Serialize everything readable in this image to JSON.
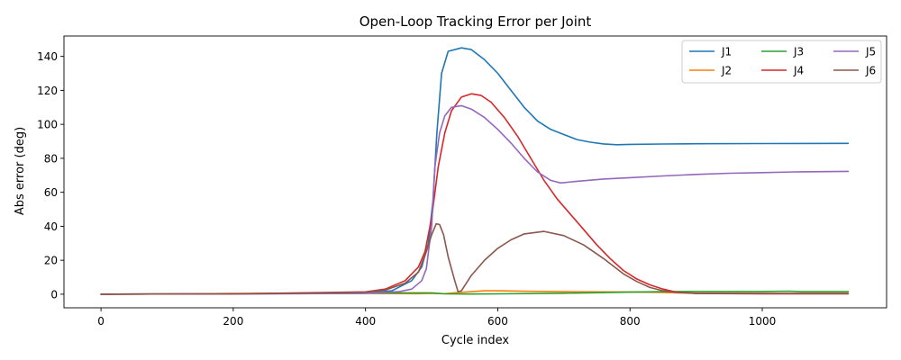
{
  "chart_data": {
    "type": "line",
    "title": "Open-Loop Tracking Error per Joint",
    "xlabel": "Cycle index",
    "ylabel": "Abs error (deg)",
    "xlim": [
      -56,
      1188
    ],
    "ylim": [
      -8,
      152
    ],
    "xticks": [
      0,
      200,
      400,
      600,
      800,
      1000
    ],
    "yticks": [
      0,
      20,
      40,
      60,
      80,
      100,
      120,
      140
    ],
    "grid": false,
    "legend": {
      "position": "top-right",
      "columns": 3
    },
    "series": [
      {
        "name": "J1",
        "color": "#1f77b4",
        "points": [
          [
            0,
            0
          ],
          [
            200,
            0.2
          ],
          [
            400,
            0.6
          ],
          [
            440,
            2
          ],
          [
            470,
            8
          ],
          [
            485,
            16
          ],
          [
            495,
            30
          ],
          [
            502,
            55
          ],
          [
            508,
            95
          ],
          [
            515,
            130
          ],
          [
            525,
            143
          ],
          [
            545,
            145
          ],
          [
            560,
            144
          ],
          [
            580,
            138
          ],
          [
            600,
            130
          ],
          [
            620,
            120
          ],
          [
            640,
            110
          ],
          [
            660,
            102
          ],
          [
            680,
            97
          ],
          [
            700,
            94
          ],
          [
            720,
            91
          ],
          [
            740,
            89.5
          ],
          [
            760,
            88.5
          ],
          [
            780,
            88
          ],
          [
            800,
            88.2
          ],
          [
            850,
            88.4
          ],
          [
            900,
            88.6
          ],
          [
            1000,
            88.7
          ],
          [
            1130,
            88.8
          ]
        ]
      },
      {
        "name": "J2",
        "color": "#ff7f0e",
        "points": [
          [
            0,
            0
          ],
          [
            150,
            0.2
          ],
          [
            200,
            0.5
          ],
          [
            300,
            0.6
          ],
          [
            400,
            0.5
          ],
          [
            480,
            0.3
          ],
          [
            500,
            0.5
          ],
          [
            520,
            0.3
          ],
          [
            540,
            1
          ],
          [
            560,
            1.5
          ],
          [
            580,
            2
          ],
          [
            600,
            2
          ],
          [
            650,
            1.7
          ],
          [
            700,
            1.5
          ],
          [
            800,
            1.3
          ],
          [
            850,
            1
          ],
          [
            900,
            0.5
          ],
          [
            1000,
            0.4
          ],
          [
            1130,
            0.4
          ]
        ]
      },
      {
        "name": "J3",
        "color": "#2ca02c",
        "points": [
          [
            0,
            0
          ],
          [
            200,
            0.2
          ],
          [
            300,
            0.4
          ],
          [
            400,
            0.6
          ],
          [
            450,
            0.8
          ],
          [
            500,
            0.8
          ],
          [
            520,
            0.2
          ],
          [
            560,
            0.1
          ],
          [
            600,
            0.2
          ],
          [
            700,
            0.6
          ],
          [
            800,
            1.2
          ],
          [
            850,
            1.5
          ],
          [
            900,
            1.6
          ],
          [
            1000,
            1.6
          ],
          [
            1040,
            1.8
          ],
          [
            1060,
            1.5
          ],
          [
            1130,
            1.5
          ]
        ]
      },
      {
        "name": "J4",
        "color": "#d62728",
        "points": [
          [
            0,
            0
          ],
          [
            200,
            0.2
          ],
          [
            400,
            1.4
          ],
          [
            430,
            3
          ],
          [
            460,
            8
          ],
          [
            480,
            16
          ],
          [
            490,
            25
          ],
          [
            500,
            45
          ],
          [
            510,
            75
          ],
          [
            520,
            95
          ],
          [
            530,
            108
          ],
          [
            545,
            116
          ],
          [
            560,
            118
          ],
          [
            575,
            117
          ],
          [
            590,
            113
          ],
          [
            610,
            104
          ],
          [
            630,
            93
          ],
          [
            650,
            80
          ],
          [
            670,
            67
          ],
          [
            690,
            56
          ],
          [
            710,
            47
          ],
          [
            730,
            38
          ],
          [
            750,
            29
          ],
          [
            770,
            21
          ],
          [
            790,
            14
          ],
          [
            810,
            9
          ],
          [
            830,
            5.5
          ],
          [
            850,
            3
          ],
          [
            870,
            1.2
          ],
          [
            900,
            0.4
          ],
          [
            1000,
            0.2
          ],
          [
            1130,
            0.2
          ]
        ]
      },
      {
        "name": "J5",
        "color": "#9467bd",
        "points": [
          [
            0,
            0
          ],
          [
            300,
            0.3
          ],
          [
            400,
            0.6
          ],
          [
            450,
            1.5
          ],
          [
            470,
            3
          ],
          [
            485,
            8
          ],
          [
            492,
            15
          ],
          [
            500,
            40
          ],
          [
            505,
            75
          ],
          [
            512,
            95
          ],
          [
            520,
            105
          ],
          [
            530,
            110
          ],
          [
            545,
            111
          ],
          [
            560,
            109
          ],
          [
            580,
            104
          ],
          [
            600,
            97
          ],
          [
            620,
            89
          ],
          [
            640,
            80
          ],
          [
            660,
            72
          ],
          [
            680,
            67
          ],
          [
            695,
            65.5
          ],
          [
            720,
            66.5
          ],
          [
            760,
            67.8
          ],
          [
            800,
            68.6
          ],
          [
            850,
            69.6
          ],
          [
            900,
            70.5
          ],
          [
            950,
            71.2
          ],
          [
            1000,
            71.6
          ],
          [
            1050,
            72
          ],
          [
            1130,
            72.3
          ]
        ]
      },
      {
        "name": "J6",
        "color": "#8c564b",
        "points": [
          [
            0,
            0
          ],
          [
            200,
            0.2
          ],
          [
            300,
            0.6
          ],
          [
            400,
            1.2
          ],
          [
            430,
            2.5
          ],
          [
            460,
            6.5
          ],
          [
            480,
            13
          ],
          [
            492,
            25
          ],
          [
            500,
            35
          ],
          [
            507,
            41.5
          ],
          [
            512,
            41
          ],
          [
            518,
            35
          ],
          [
            525,
            22
          ],
          [
            535,
            8
          ],
          [
            540,
            1.5
          ],
          [
            545,
            2
          ],
          [
            560,
            11
          ],
          [
            580,
            20
          ],
          [
            600,
            27
          ],
          [
            620,
            32
          ],
          [
            640,
            35.5
          ],
          [
            670,
            37
          ],
          [
            700,
            34.5
          ],
          [
            730,
            29
          ],
          [
            760,
            21
          ],
          [
            790,
            12
          ],
          [
            810,
            7.5
          ],
          [
            830,
            4
          ],
          [
            850,
            2
          ],
          [
            870,
            1
          ],
          [
            900,
            0.6
          ],
          [
            1000,
            0.4
          ],
          [
            1130,
            0.4
          ]
        ]
      }
    ]
  }
}
